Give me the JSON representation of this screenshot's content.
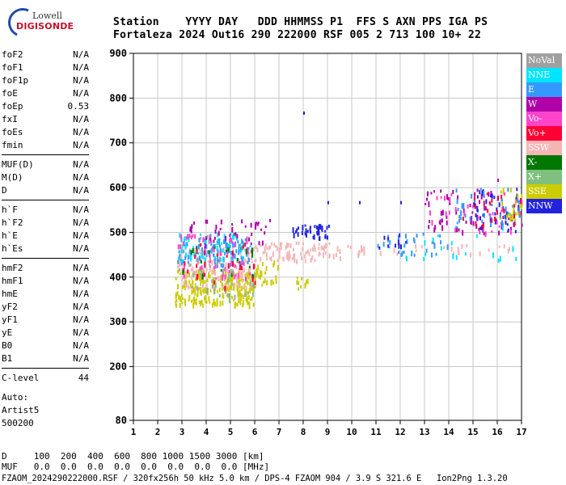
{
  "logo": {
    "line1": "Lowell",
    "line2": "DIGISONDE"
  },
  "header": {
    "row1": "Station    YYYY DAY   DDD HHMMSS P1  FFS S AXN PPS IGA PS",
    "row2": "Fortaleza 2024 Out16 290 222000 RSF 005 2 713 100 10+ 22"
  },
  "params": [
    [
      {
        "k": "foF2",
        "v": "N/A"
      },
      {
        "k": "foF1",
        "v": "N/A"
      },
      {
        "k": "foF1p",
        "v": "N/A"
      },
      {
        "k": "foE",
        "v": "N/A"
      },
      {
        "k": "foEp",
        "v": "0.53"
      },
      {
        "k": "fxI",
        "v": "N/A"
      },
      {
        "k": "foEs",
        "v": "N/A"
      },
      {
        "k": "fmin",
        "v": "N/A"
      }
    ],
    [
      {
        "k": "MUF(D)",
        "v": "N/A"
      },
      {
        "k": "M(D)",
        "v": "N/A"
      },
      {
        "k": "D",
        "v": "N/A"
      }
    ],
    [
      {
        "k": "h`F",
        "v": "N/A"
      },
      {
        "k": "h`F2",
        "v": "N/A"
      },
      {
        "k": "h`E",
        "v": "N/A"
      },
      {
        "k": "h`Es",
        "v": "N/A"
      }
    ],
    [
      {
        "k": "hmF2",
        "v": "N/A"
      },
      {
        "k": "hmF1",
        "v": "N/A"
      },
      {
        "k": "hmE",
        "v": "N/A"
      },
      {
        "k": "yF2",
        "v": "N/A"
      },
      {
        "k": "yF1",
        "v": "N/A"
      },
      {
        "k": "yE",
        "v": "N/A"
      },
      {
        "k": "B0",
        "v": "N/A"
      },
      {
        "k": "B1",
        "v": "N/A"
      }
    ],
    [
      {
        "k": "C-level",
        "v": "44"
      }
    ]
  ],
  "auto": {
    "line1": "Auto:",
    "line2": "Artist5",
    "line3": "500200"
  },
  "bottom": {
    "d_row": "D     100  200  400  600  800 1000 1500 3000 [km]",
    "muf_row": "MUF   0.0  0.0  0.0  0.0  0.0  0.0  0.0  0.0 [MHz]",
    "footer": "FZAOM_2024290222000.RSF / 320fx256h 50 kHz 5.0 km / DPS-4 FZAOM 904 / 3.9 S 321.6 E   Ion2Png 1.3.20"
  },
  "legend": [
    {
      "label": "NoVal",
      "color": "#a0a0a0"
    },
    {
      "label": "NNE",
      "color": "#00e5ff"
    },
    {
      "label": "E",
      "color": "#3399ff"
    },
    {
      "label": "W",
      "color": "#b000a8"
    },
    {
      "label": "Vo-",
      "color": "#ff44cc"
    },
    {
      "label": "Vo+",
      "color": "#ff0033"
    },
    {
      "label": "SSW",
      "color": "#f5b5b5"
    },
    {
      "label": "X-",
      "color": "#007700"
    },
    {
      "label": "X+",
      "color": "#7fc07f"
    },
    {
      "label": "SSE",
      "color": "#cccc00"
    },
    {
      "label": "NNW",
      "color": "#2222dd"
    }
  ],
  "chart_data": {
    "type": "scatter",
    "xlabel": "",
    "ylabel": "",
    "xlim": [
      1,
      17
    ],
    "ylim": [
      80,
      900
    ],
    "x_ticks": [
      1,
      2,
      3,
      4,
      5,
      6,
      7,
      8,
      9,
      10,
      11,
      12,
      13,
      14,
      15,
      16,
      17
    ],
    "y_ticks": [
      80,
      200,
      300,
      400,
      500,
      600,
      700,
      800,
      900
    ],
    "grid": true,
    "clusters": [
      {
        "name": "SSE",
        "color": "#cccc00",
        "x_range": [
          2.7,
          6.0
        ],
        "y_range": [
          340,
          420
        ],
        "count": 260
      },
      {
        "name": "SSE",
        "color": "#cccc00",
        "x_range": [
          6.0,
          7.0
        ],
        "y_range": [
          380,
          440
        ],
        "count": 25
      },
      {
        "name": "SSE",
        "color": "#cccc00",
        "x_range": [
          7.7,
          8.3
        ],
        "y_range": [
          370,
          410
        ],
        "count": 10
      },
      {
        "name": "SSW",
        "color": "#f5b5b5",
        "x_range": [
          2.8,
          6.0
        ],
        "y_range": [
          380,
          470
        ],
        "count": 140
      },
      {
        "name": "SSW",
        "color": "#f5b5b5",
        "x_range": [
          6.0,
          9.5
        ],
        "y_range": [
          440,
          480
        ],
        "count": 90
      },
      {
        "name": "SSW",
        "color": "#f5b5b5",
        "x_range": [
          9.5,
          16.5
        ],
        "y_range": [
          455,
          475
        ],
        "count": 30
      },
      {
        "name": "E",
        "color": "#3399ff",
        "x_range": [
          2.8,
          5.8
        ],
        "y_range": [
          430,
          490
        ],
        "count": 110
      },
      {
        "name": "NNE",
        "color": "#00e5ff",
        "x_range": [
          2.8,
          5.8
        ],
        "y_range": [
          440,
          500
        ],
        "count": 60
      },
      {
        "name": "Vo-",
        "color": "#ff44cc",
        "x_range": [
          2.8,
          5.8
        ],
        "y_range": [
          400,
          500
        ],
        "count": 60
      },
      {
        "name": "Vo+",
        "color": "#ff0033",
        "x_range": [
          2.8,
          6.0
        ],
        "y_range": [
          380,
          480
        ],
        "count": 30
      },
      {
        "name": "W",
        "color": "#b000a8",
        "x_range": [
          3.0,
          6.5
        ],
        "y_range": [
          470,
          530
        ],
        "count": 40
      },
      {
        "name": "NNW",
        "color": "#2222dd",
        "x_range": [
          7.5,
          9.1
        ],
        "y_range": [
          490,
          520
        ],
        "count": 40
      },
      {
        "name": "X-",
        "color": "#007700",
        "x_range": [
          3.0,
          6.0
        ],
        "y_range": [
          400,
          470
        ],
        "count": 20
      },
      {
        "name": "X+",
        "color": "#7fc07f",
        "x_range": [
          3.0,
          6.0
        ],
        "y_range": [
          350,
          420
        ],
        "count": 20
      },
      {
        "name": "NoVal",
        "color": "#a0a0a0",
        "x_range": [
          2.8,
          6.0
        ],
        "y_range": [
          360,
          500
        ],
        "count": 25
      },
      {
        "name": "E",
        "color": "#3399ff",
        "x_range": [
          11.0,
          14.0
        ],
        "y_range": [
          450,
          500
        ],
        "count": 30
      },
      {
        "name": "NNW",
        "color": "#2222dd",
        "x_range": [
          10.8,
          12.3
        ],
        "y_range": [
          460,
          500
        ],
        "count": 10
      },
      {
        "name": "W",
        "color": "#b000a8",
        "x_range": [
          13.0,
          17.0
        ],
        "y_range": [
          500,
          600
        ],
        "count": 70
      },
      {
        "name": "NNW",
        "color": "#2222dd",
        "x_range": [
          15.0,
          17.0
        ],
        "y_range": [
          500,
          600
        ],
        "count": 40
      },
      {
        "name": "E",
        "color": "#3399ff",
        "x_range": [
          14.0,
          17.0
        ],
        "y_range": [
          520,
          600
        ],
        "count": 40
      },
      {
        "name": "SSE",
        "color": "#cccc00",
        "x_range": [
          16.0,
          17.0
        ],
        "y_range": [
          520,
          600
        ],
        "count": 25
      },
      {
        "name": "Vo-",
        "color": "#ff44cc",
        "x_range": [
          13.0,
          17.0
        ],
        "y_range": [
          500,
          590
        ],
        "count": 30
      },
      {
        "name": "Vo+",
        "color": "#ff0033",
        "x_range": [
          14.5,
          17.0
        ],
        "y_range": [
          510,
          590
        ],
        "count": 20
      },
      {
        "name": "NNE",
        "color": "#00e5ff",
        "x_range": [
          12.0,
          17.0
        ],
        "y_range": [
          440,
          520
        ],
        "count": 20
      }
    ],
    "points": [
      {
        "x": 8.0,
        "y": 770,
        "color": "#2222dd",
        "series": "NNW"
      },
      {
        "x": 12.0,
        "y": 570,
        "color": "#2222dd",
        "series": "NNW"
      },
      {
        "x": 9.0,
        "y": 570,
        "color": "#2222dd",
        "series": "NNW"
      },
      {
        "x": 10.3,
        "y": 570,
        "color": "#2222dd",
        "series": "NNW"
      },
      {
        "x": 16.0,
        "y": 620,
        "color": "#b000a8",
        "series": "W"
      },
      {
        "x": 6.6,
        "y": 530,
        "color": "#b000a8",
        "series": "W"
      }
    ]
  }
}
